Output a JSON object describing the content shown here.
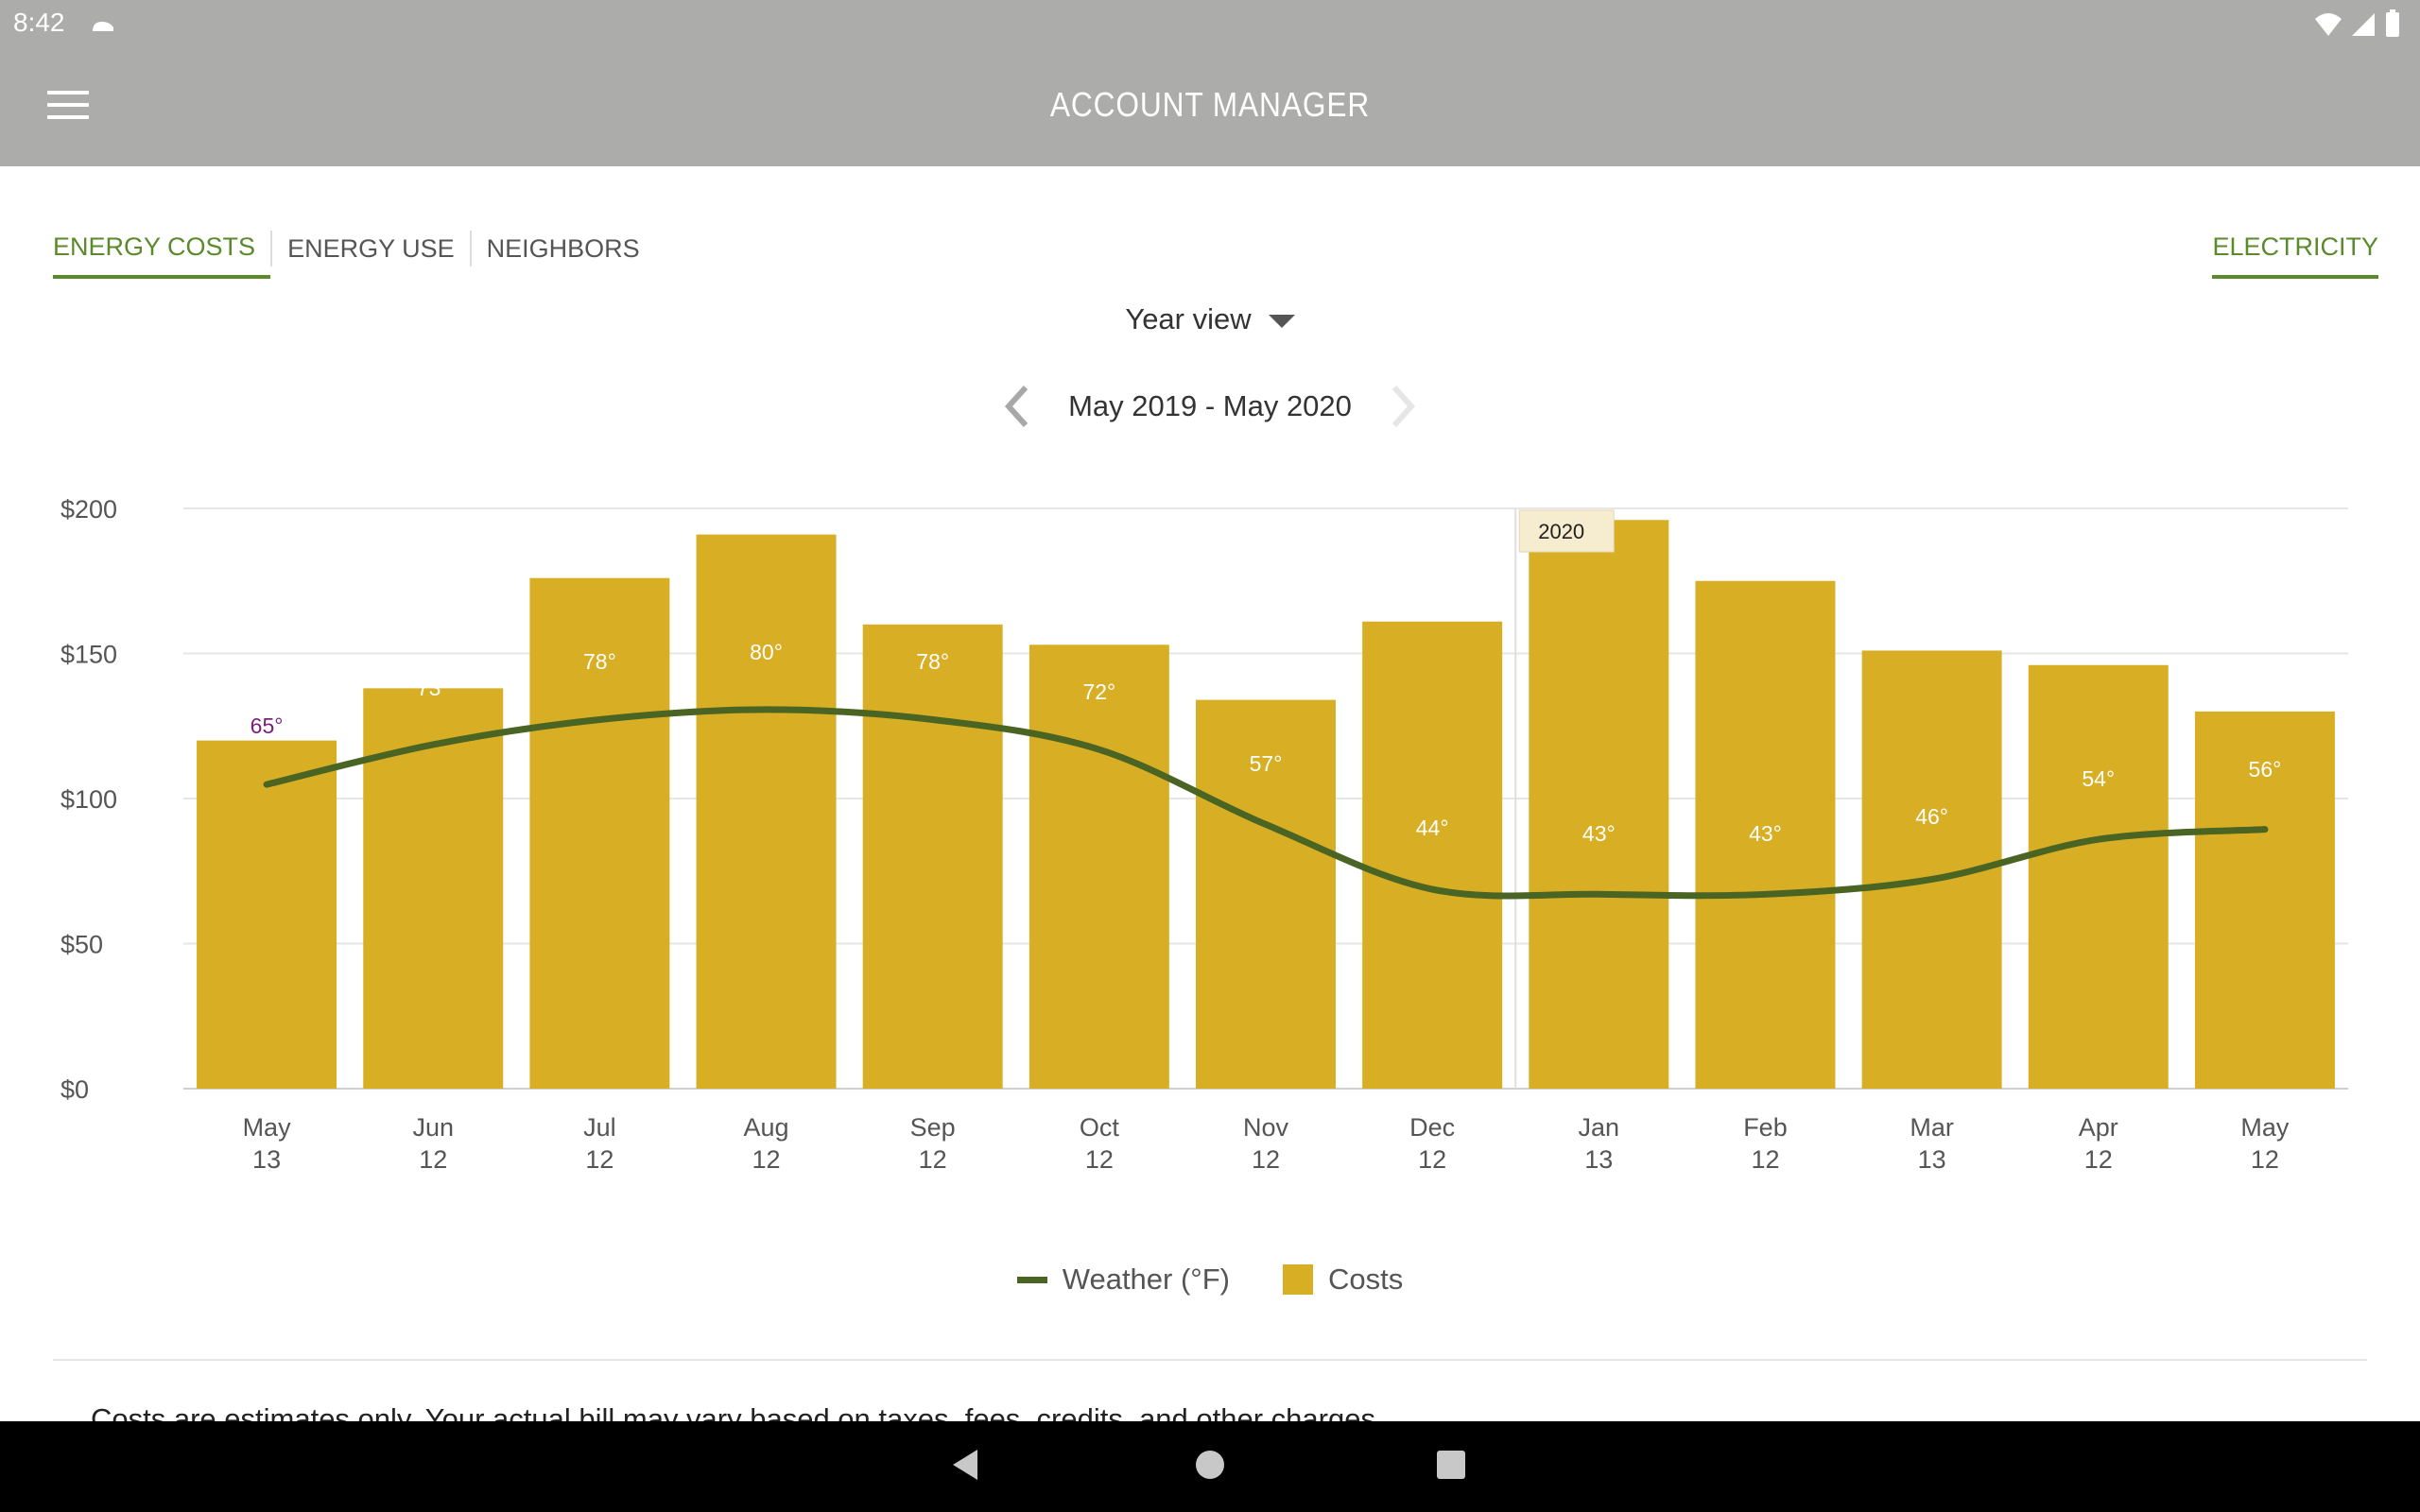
{
  "status_bar": {
    "time": "8:42"
  },
  "app_bar": {
    "title": "ACCOUNT MANAGER"
  },
  "tabs": [
    {
      "label": "ENERGY COSTS",
      "active": true
    },
    {
      "label": "ENERGY USE",
      "active": false
    },
    {
      "label": "NEIGHBORS",
      "active": false
    }
  ],
  "utility": {
    "label": "ELECTRICITY"
  },
  "view_select": {
    "label": "Year view"
  },
  "period": {
    "label": "May 2019 - May 2020"
  },
  "colors": {
    "bar": "#d8ae24",
    "line": "#4a6423",
    "accent": "#5a8a2a",
    "header": "#acacaa"
  },
  "chart_data": {
    "type": "bar",
    "categories": [
      "May 13",
      "Jun 12",
      "Jul 12",
      "Aug 12",
      "Sep 12",
      "Oct 12",
      "Nov 12",
      "Dec 12",
      "Jan 13",
      "Feb 12",
      "Mar 13",
      "Apr 12",
      "May 12"
    ],
    "x_tick_labels": [
      [
        "May",
        "13"
      ],
      [
        "Jun",
        "12"
      ],
      [
        "Jul",
        "12"
      ],
      [
        "Aug",
        "12"
      ],
      [
        "Sep",
        "12"
      ],
      [
        "Oct",
        "12"
      ],
      [
        "Nov",
        "12"
      ],
      [
        "Dec",
        "12"
      ],
      [
        "Jan",
        "13"
      ],
      [
        "Feb",
        "12"
      ],
      [
        "Mar",
        "13"
      ],
      [
        "Apr",
        "12"
      ],
      [
        "May",
        "12"
      ]
    ],
    "series": [
      {
        "name": "Costs",
        "type": "bar",
        "values": [
          120,
          138,
          176,
          191,
          160,
          153,
          134,
          161,
          196,
          175,
          151,
          146,
          130
        ]
      },
      {
        "name": "Weather (°F)",
        "type": "line",
        "values": [
          65,
          73,
          78,
          80,
          78,
          72,
          57,
          44,
          43,
          43,
          46,
          54,
          56
        ],
        "labels": [
          "65°",
          "73°",
          "78°",
          "80°",
          "78°",
          "72°",
          "57°",
          "44°",
          "43°",
          "43°",
          "46°",
          "54°",
          "56°"
        ]
      }
    ],
    "ylim": [
      0,
      200
    ],
    "y_ticks": [
      0,
      50,
      100,
      150,
      200
    ],
    "y_tick_labels": [
      "$0",
      "$50",
      "$100",
      "$150",
      "$200"
    ],
    "year_marker": {
      "label": "2020",
      "before_category": "Jan 13"
    },
    "grid": true,
    "legend": "bottom-center"
  },
  "legend": {
    "weather": "Weather (°F)",
    "costs": "Costs"
  },
  "disclaimer": "Costs are estimates only. Your actual bill may vary based on taxes, fees, credits, and other charges."
}
